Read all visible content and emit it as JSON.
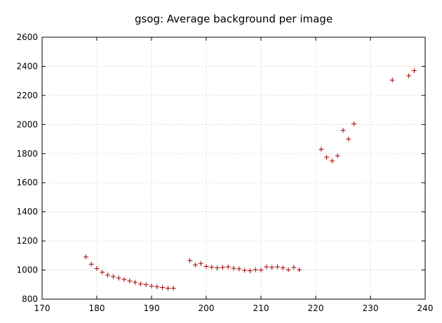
{
  "chart_data": {
    "type": "scatter",
    "title": "gsog: Average background per image",
    "xlabel": "",
    "ylabel": "",
    "xlim": [
      170,
      240
    ],
    "ylim": [
      800,
      2600
    ],
    "xticks": [
      170,
      180,
      190,
      200,
      210,
      220,
      230,
      240
    ],
    "yticks": [
      800,
      1000,
      1200,
      1400,
      1600,
      1800,
      2000,
      2200,
      2400,
      2600
    ],
    "grid": true,
    "marker": "+",
    "marker_color": "#a00000",
    "series": [
      {
        "x": [
          178,
          179,
          180,
          181,
          182,
          183,
          184,
          185,
          186,
          187,
          188,
          189,
          190,
          191,
          192,
          193,
          194,
          197,
          198,
          199,
          200,
          201,
          202,
          203,
          204,
          205,
          206,
          207,
          208,
          209,
          210,
          211,
          212,
          213,
          214,
          215,
          216,
          217,
          221,
          222,
          223,
          224,
          225,
          226,
          227,
          234,
          237,
          238
        ],
        "y": [
          1090,
          1040,
          1010,
          985,
          965,
          955,
          945,
          935,
          925,
          915,
          905,
          900,
          890,
          885,
          880,
          875,
          875,
          1065,
          1035,
          1045,
          1025,
          1020,
          1015,
          1018,
          1022,
          1012,
          1008,
          998,
          995,
          1002,
          1000,
          1022,
          1018,
          1022,
          1015,
          1002,
          1018,
          1002,
          1830,
          1775,
          1750,
          1785,
          1960,
          1900,
          2005,
          2305,
          2335,
          2370
        ]
      }
    ]
  }
}
